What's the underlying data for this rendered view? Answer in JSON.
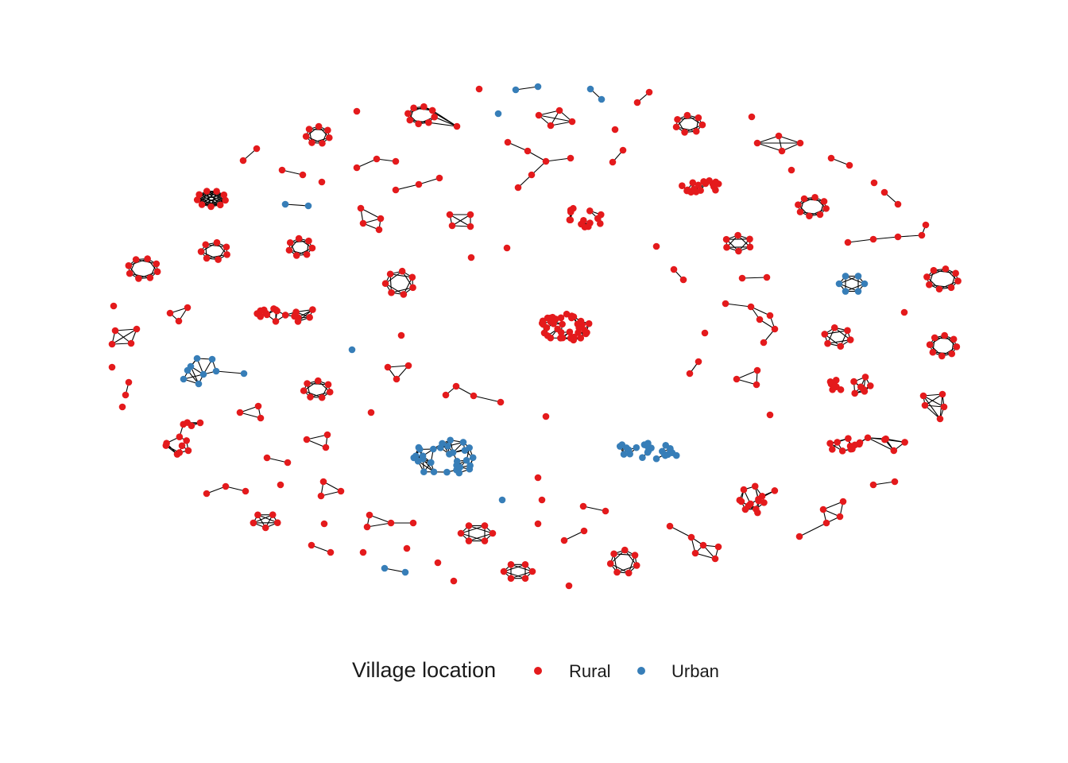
{
  "legend": {
    "title": "Village location",
    "items": [
      {
        "key": "rural",
        "label": "Rural",
        "color": "#E41A1C"
      },
      {
        "key": "urban",
        "label": "Urban",
        "color": "#377EB8"
      }
    ]
  },
  "colors": {
    "rural": "#E41A1C",
    "urban": "#377EB8",
    "edge": "#000000",
    "background": "#FFFFFF"
  }
}
